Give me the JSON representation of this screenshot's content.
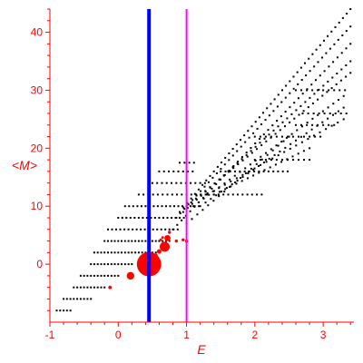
{
  "chart_data": {
    "type": "scatter",
    "title": "",
    "xlabel": "E",
    "ylabel": "<M>",
    "xlim": [
      -1,
      3.45
    ],
    "ylim": [
      -10,
      44
    ],
    "x_ticks": [
      -1,
      0,
      1,
      2,
      3
    ],
    "y_ticks": [
      0,
      10,
      20,
      30,
      40
    ],
    "grid": false,
    "legend": "none",
    "vertical_lines": [
      {
        "x": 0.45,
        "color": "#0000ff"
      },
      {
        "x": 1.0,
        "color": "#ff00ff"
      }
    ],
    "series": [
      {
        "color": "#000000",
        "marker": "small-square",
        "point_rows": [
          {
            "y": -8,
            "x_from": -0.9,
            "x_to": -0.7,
            "step": 0.05
          },
          {
            "y": -6,
            "x_from": -0.8,
            "x_to": -0.4,
            "step": 0.05
          },
          {
            "y": -4,
            "x_from": -0.65,
            "x_to": -0.2,
            "step": 0.05
          },
          {
            "y": -2,
            "x_from": -0.55,
            "x_to": 0.0,
            "step": 0.05
          },
          {
            "y": 0,
            "x_from": -0.4,
            "x_to": 0.2,
            "step": 0.05
          },
          {
            "y": 2,
            "x_from": -0.35,
            "x_to": 0.55,
            "step": 0.05
          },
          {
            "y": 4,
            "x_from": -0.2,
            "x_to": 0.75,
            "step": 0.05
          },
          {
            "y": 6,
            "x_from": -0.15,
            "x_to": 0.9,
            "step": 0.06
          },
          {
            "y": 8,
            "x_from": 0.0,
            "x_to": 1.0,
            "step": 0.06
          },
          {
            "y": 10,
            "x_from": 0.1,
            "x_to": 1.2,
            "step": 0.06
          },
          {
            "y": 12,
            "x_from": 0.3,
            "x_to": 1.3,
            "step": 0.07
          },
          {
            "y": 14,
            "x_from": 0.5,
            "x_to": 1.3,
            "step": 0.07
          },
          {
            "y": 16,
            "x_from": 0.6,
            "x_to": 1.1,
            "step": 0.07
          },
          {
            "y": 17.5,
            "x_from": 0.9,
            "x_to": 1.15,
            "step": 0.07
          },
          {
            "y": 12,
            "x_from": 1.4,
            "x_to": 2.1,
            "step": 0.07
          },
          {
            "y": 16,
            "x_from": 1.5,
            "x_to": 2.5,
            "step": 0.07
          },
          {
            "y": 18,
            "x_from": 2.0,
            "x_to": 2.8,
            "step": 0.08
          },
          {
            "y": 22,
            "x_from": 2.0,
            "x_to": 3.0,
            "step": 0.08
          },
          {
            "y": 24,
            "x_from": 2.6,
            "x_to": 3.2,
            "step": 0.08
          },
          {
            "y": 26,
            "x_from": 2.7,
            "x_to": 3.35,
            "step": 0.08
          },
          {
            "y": 30,
            "x_from": 2.6,
            "x_to": 3.35,
            "step": 0.08
          }
        ],
        "point_lines": [
          {
            "x0": 0.9,
            "y0": 9,
            "x1": 3.4,
            "y1": 44,
            "n": 46
          },
          {
            "x0": 0.85,
            "y0": 8,
            "x1": 3.4,
            "y1": 41,
            "n": 44
          },
          {
            "x0": 0.8,
            "y0": 6,
            "x1": 3.4,
            "y1": 38,
            "n": 42
          },
          {
            "x0": 0.95,
            "y0": 9,
            "x1": 3.4,
            "y1": 35,
            "n": 38
          },
          {
            "x0": 1.0,
            "y0": 10,
            "x1": 3.4,
            "y1": 33,
            "n": 36
          },
          {
            "x0": 1.1,
            "y0": 10,
            "x1": 3.3,
            "y1": 29,
            "n": 30
          },
          {
            "x0": 1.2,
            "y0": 10,
            "x1": 3.3,
            "y1": 27,
            "n": 28
          },
          {
            "x0": 1.3,
            "y0": 12,
            "x1": 3.3,
            "y1": 25,
            "n": 24
          },
          {
            "x0": 1.4,
            "y0": 12,
            "x1": 2.8,
            "y1": 20,
            "n": 18
          },
          {
            "x0": 1.0,
            "y0": 7,
            "x1": 2.5,
            "y1": 22,
            "n": 20
          }
        ]
      },
      {
        "color": "#ff0000",
        "marker": "circle",
        "points": [
          {
            "x": 0.45,
            "y": 0,
            "size": 3.2
          },
          {
            "x": 0.68,
            "y": 3,
            "size": 1.3
          },
          {
            "x": 0.18,
            "y": -2,
            "size": 1.0
          },
          {
            "x": 0.72,
            "y": 4.5,
            "size": 0.8
          },
          {
            "x": 0.6,
            "y": 2.2,
            "size": 0.6
          },
          {
            "x": 0.55,
            "y": 1.5,
            "size": 0.5
          },
          {
            "x": -0.12,
            "y": -4,
            "size": 0.45
          },
          {
            "x": 0.75,
            "y": 5.5,
            "size": 0.4
          },
          {
            "x": 0.85,
            "y": 4.0,
            "size": 0.4
          },
          {
            "x": 0.95,
            "y": 4.2,
            "size": 0.4
          },
          {
            "x": 1.0,
            "y": 4.0,
            "size": 0.4
          },
          {
            "x": 0.62,
            "y": 4.2,
            "size": 0.35
          },
          {
            "x": 0.65,
            "y": 4.6,
            "size": 0.35
          }
        ]
      }
    ]
  }
}
